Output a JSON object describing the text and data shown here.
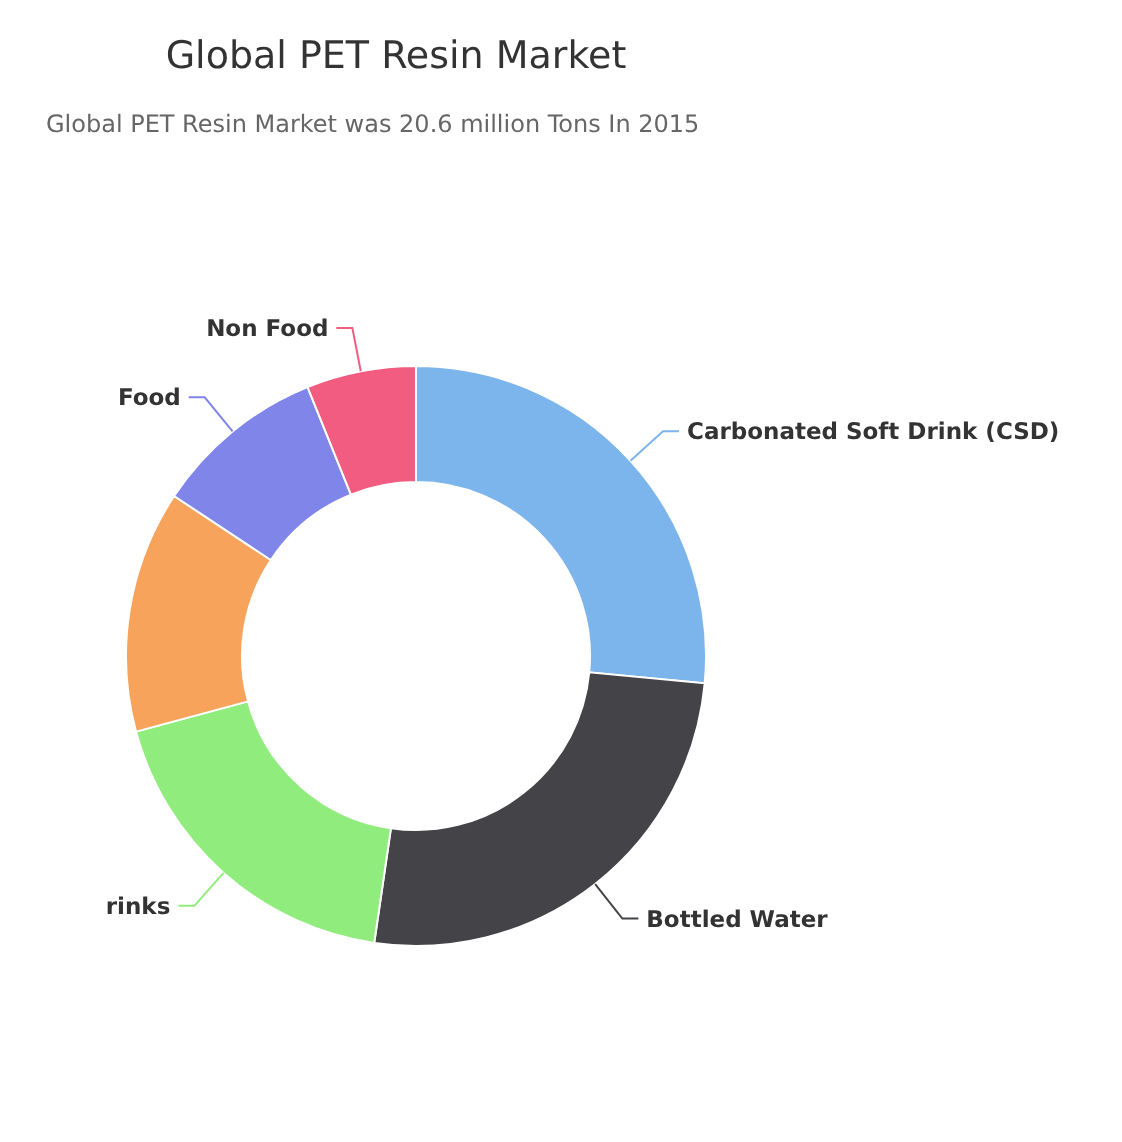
{
  "chart_data": {
    "type": "donut",
    "title": "Global PET Resin Market",
    "subtitle": "Global PET Resin Market was 20.6 million Tons In 2015",
    "categories": [
      "Carbonated Soft Drink (CSD)",
      "Bottled Water",
      "rinks",
      null,
      "Food",
      "Non Food"
    ],
    "values": [
      26.5,
      25.8,
      18.5,
      13.5,
      9.6,
      6.1
    ],
    "colors": [
      "#7cb5ec",
      "#434348",
      "#90ed7d",
      "#f7a35c",
      "#8085e9",
      "#f15c80"
    ]
  }
}
